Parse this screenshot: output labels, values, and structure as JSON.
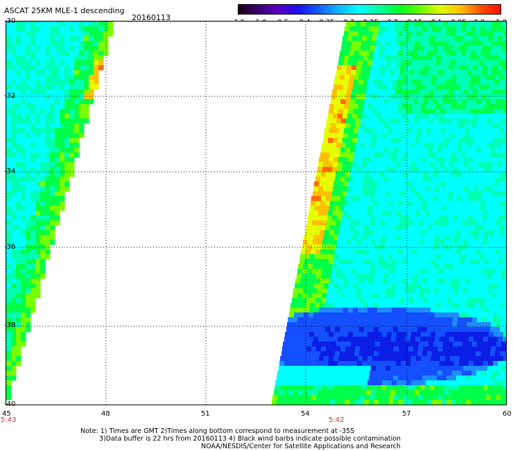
{
  "title": "ASCAT 25KM MLE-1 descending",
  "date": "20160113",
  "colorbar": {
    "labels": [
      "-3.0",
      "-1.0",
      "-0.5",
      "-0.4",
      "-0.35",
      "-0.3",
      "-0.25",
      "-0.2",
      "-0.15",
      "-0.1",
      "-0.05",
      "0.0",
      "1.0"
    ],
    "colors": [
      "#1a0010",
      "#3a0070",
      "#5a00c8",
      "#1a10f0",
      "#1060ff",
      "#10b8ff",
      "#00ffff",
      "#00ff99",
      "#00ff22",
      "#66ff00",
      "#ddff00",
      "#ffc000",
      "#ff5000",
      "#ff1000"
    ]
  },
  "map": {
    "lat_labels": [
      "-30",
      "-32",
      "-34",
      "-36",
      "-38",
      "-40"
    ],
    "lon_labels": [
      "45",
      "48",
      "51",
      "54",
      "57",
      "60"
    ],
    "times": [
      "5:43",
      "5:42"
    ]
  },
  "notes": {
    "line1": "Note: 1) Times are GMT 2)Times along bottom correspond to measurement at -35S",
    "line2": "3)Data buffer is 22 hrs from 20160113 4) Black wind barbs indicate possible contamination",
    "line3": "NOAA/NESDIS/Center for Satellite Applications and Research"
  }
}
